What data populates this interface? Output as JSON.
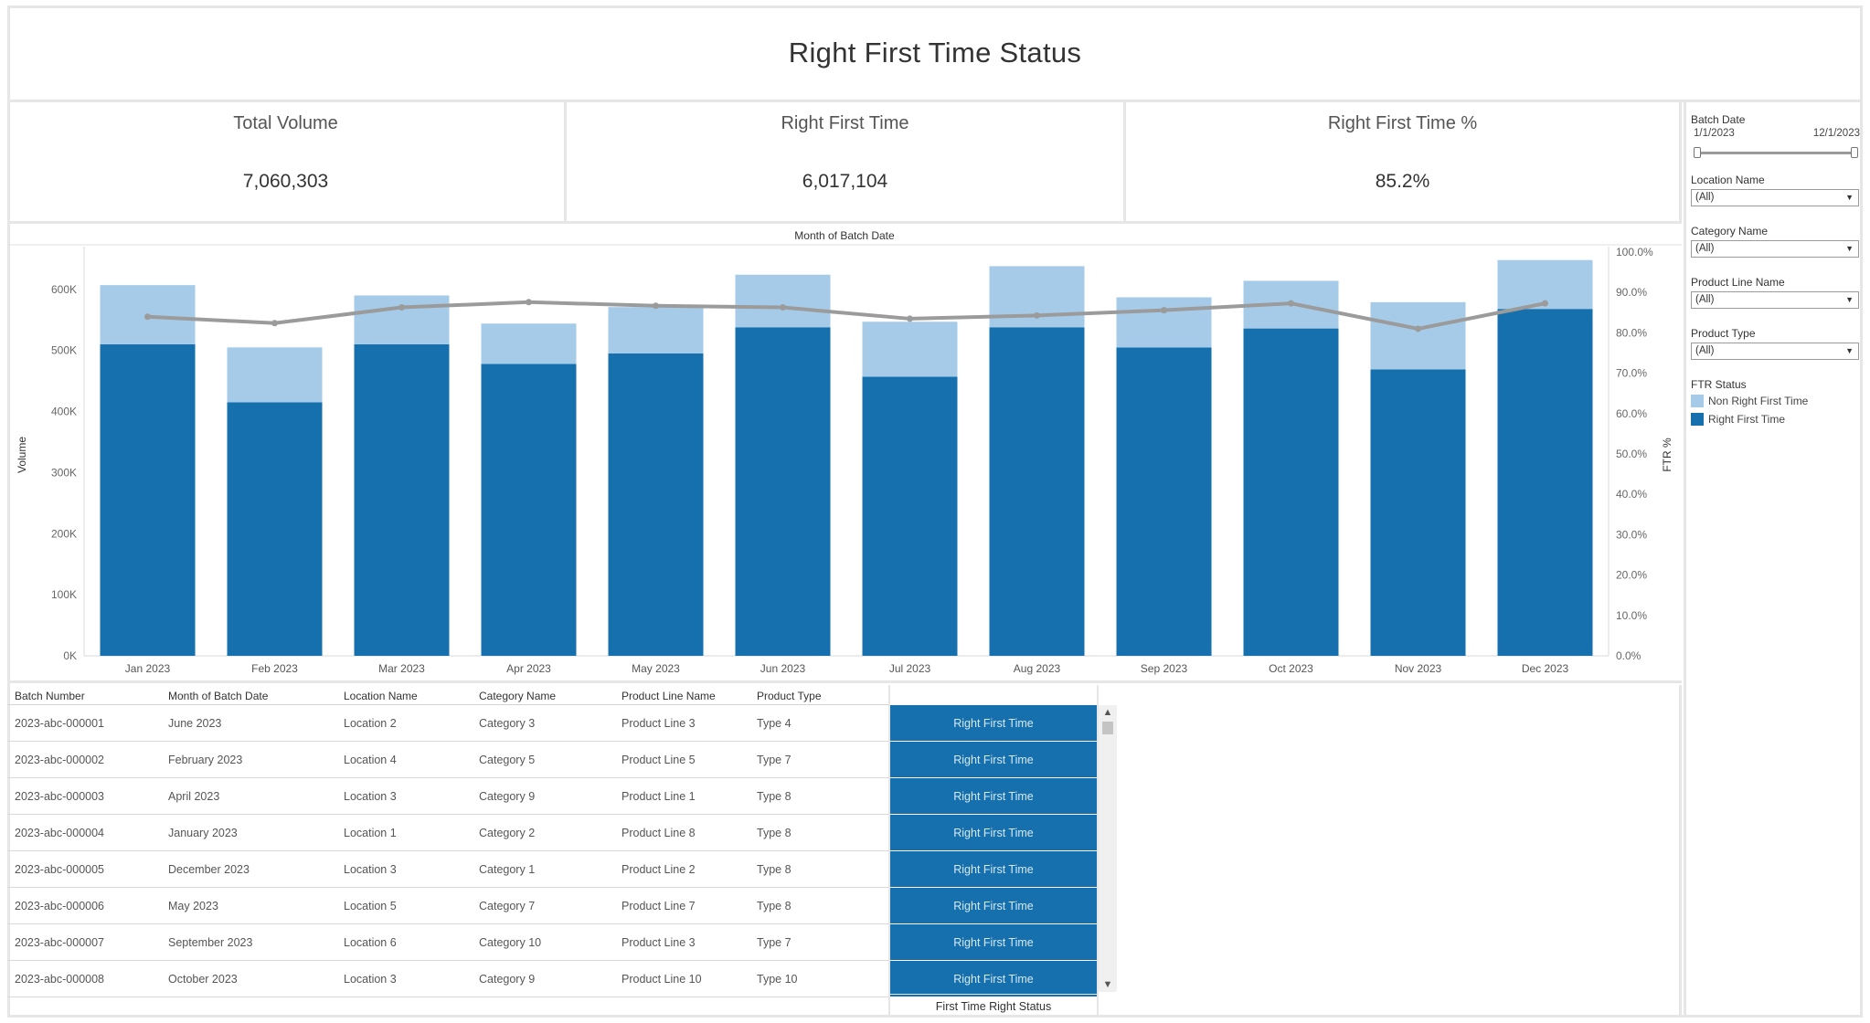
{
  "title": "Right First Time Status",
  "kpis": [
    {
      "label": "Total Volume",
      "value": "7,060,303"
    },
    {
      "label": "Right First Time",
      "value": "6,017,104"
    },
    {
      "label": "Right First Time %",
      "value": "85.2%"
    }
  ],
  "colors": {
    "right_first_time": "#1570ad",
    "non_right_first_time": "#a6cbe8",
    "line": "#9b9b9b"
  },
  "chart_data": {
    "type": "bar",
    "title": "Month of Batch Date",
    "ylabel": "Volume",
    "y2label": "FTR %",
    "ylim": [
      0,
      670000
    ],
    "y2lim": [
      0,
      100
    ],
    "y_ticks": [
      "0K",
      "100K",
      "200K",
      "300K",
      "400K",
      "500K",
      "600K"
    ],
    "y_tick_values": [
      0,
      100000,
      200000,
      300000,
      400000,
      500000,
      600000
    ],
    "y2_ticks": [
      "0.0%",
      "10.0%",
      "20.0%",
      "30.0%",
      "40.0%",
      "50.0%",
      "60.0%",
      "70.0%",
      "80.0%",
      "90.0%",
      "100.0%"
    ],
    "y2_tick_values": [
      0,
      10,
      20,
      30,
      40,
      50,
      60,
      70,
      80,
      90,
      100
    ],
    "categories": [
      "Jan 2023",
      "Feb 2023",
      "Mar 2023",
      "Apr 2023",
      "May 2023",
      "Jun 2023",
      "Jul 2023",
      "Aug 2023",
      "Sep 2023",
      "Oct 2023",
      "Nov 2023",
      "Dec 2023"
    ],
    "stacked": true,
    "series": [
      {
        "name": "Right First Time",
        "values": [
          510000,
          415000,
          510000,
          478000,
          495000,
          538000,
          457000,
          538000,
          505000,
          536000,
          469000,
          568000
        ]
      },
      {
        "name": "Non Right First Time",
        "values": [
          97000,
          90000,
          80000,
          66000,
          76000,
          86000,
          90000,
          100000,
          82000,
          78000,
          110000,
          80000
        ]
      }
    ],
    "line_series": {
      "values": [
        84.0,
        82.4,
        86.3,
        87.6,
        86.7,
        86.3,
        83.5,
        84.3,
        85.6,
        87.3,
        81.0,
        87.3
      ]
    },
    "grid": false,
    "legend": "right-panel"
  },
  "table": {
    "columns": [
      "Batch Number",
      "Month of Batch Date",
      "Location Name",
      "Category Name",
      "Product Line Name",
      "Product Type"
    ],
    "rows": [
      [
        "2023-abc-000001",
        "June 2023",
        "Location 2",
        "Category 3",
        "Product Line 3",
        "Type 4",
        "Right First Time"
      ],
      [
        "2023-abc-000002",
        "February 2023",
        "Location 4",
        "Category 5",
        "Product Line 5",
        "Type 7",
        "Right First Time"
      ],
      [
        "2023-abc-000003",
        "April 2023",
        "Location 3",
        "Category 9",
        "Product Line 1",
        "Type 8",
        "Right First Time"
      ],
      [
        "2023-abc-000004",
        "January 2023",
        "Location 1",
        "Category 2",
        "Product Line 8",
        "Type 8",
        "Right First Time"
      ],
      [
        "2023-abc-000005",
        "December 2023",
        "Location 3",
        "Category 1",
        "Product Line 2",
        "Type 8",
        "Right First Time"
      ],
      [
        "2023-abc-000006",
        "May 2023",
        "Location 5",
        "Category 7",
        "Product Line 7",
        "Type 8",
        "Right First Time"
      ],
      [
        "2023-abc-000007",
        "September 2023",
        "Location 6",
        "Category 10",
        "Product Line 3",
        "Type 7",
        "Right First Time"
      ],
      [
        "2023-abc-000008",
        "October 2023",
        "Location 3",
        "Category 9",
        "Product Line 10",
        "Type 10",
        "Right First Time"
      ]
    ],
    "status_footer": "First Time Right Status"
  },
  "filters": {
    "batch_date": {
      "label": "Batch Date",
      "start": "1/1/2023",
      "end": "12/1/2023"
    },
    "location": {
      "label": "Location Name",
      "value": "(All)"
    },
    "category": {
      "label": "Category Name",
      "value": "(All)"
    },
    "product_line": {
      "label": "Product Line Name",
      "value": "(All)"
    },
    "product_type": {
      "label": "Product Type",
      "value": "(All)"
    }
  },
  "legend": {
    "title": "FTR Status",
    "items": [
      {
        "label": "Non Right First Time",
        "color": "#a6cbe8"
      },
      {
        "label": "Right First Time",
        "color": "#1570ad"
      }
    ]
  }
}
